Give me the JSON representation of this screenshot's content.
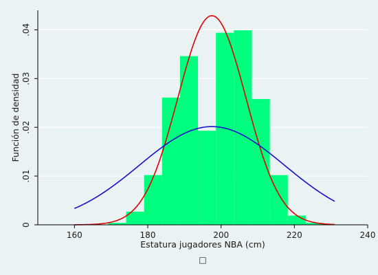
{
  "chart_data": {
    "type": "bar",
    "xlabel": "Estatura jugadores NBA (cm)",
    "ylabel": "Función de densidad",
    "xlim": [
      150,
      240
    ],
    "ylim": [
      0,
      0.044
    ],
    "x_ticks": [
      160,
      180,
      200,
      220,
      240
    ],
    "y_ticks": [
      0,
      0.01,
      0.02,
      0.03,
      0.04
    ],
    "y_tick_labels": [
      "0",
      ".01",
      ".02",
      ".03",
      ".04"
    ],
    "grid": "horizontal",
    "legend_symbol": "□",
    "histogram": {
      "color": "#00ff7f",
      "bins": [
        {
          "start": 169.2,
          "end": 174.1,
          "density": 0.0004
        },
        {
          "start": 174.1,
          "end": 179.0,
          "density": 0.0027
        },
        {
          "start": 179.0,
          "end": 183.9,
          "density": 0.0102
        },
        {
          "start": 183.9,
          "end": 188.8,
          "density": 0.0261
        },
        {
          "start": 188.8,
          "end": 193.7,
          "density": 0.0346
        },
        {
          "start": 193.7,
          "end": 198.6,
          "density": 0.0193
        },
        {
          "start": 198.6,
          "end": 203.5,
          "density": 0.0394
        },
        {
          "start": 203.5,
          "end": 208.4,
          "density": 0.0399
        },
        {
          "start": 208.4,
          "end": 213.3,
          "density": 0.0258
        },
        {
          "start": 213.3,
          "end": 218.2,
          "density": 0.0102
        },
        {
          "start": 218.2,
          "end": 223.1,
          "density": 0.0019
        },
        {
          "start": 223.1,
          "end": 228.0,
          "density": 0.0004
        }
      ]
    },
    "series": [
      {
        "type": "normal-curve",
        "color": "#e00000",
        "mean": 197.5,
        "sd": 9.3,
        "x_range": [
          160,
          231
        ]
      },
      {
        "type": "normal-curve",
        "color": "#1010d0",
        "mean": 197.5,
        "sd": 19.8,
        "x_range": [
          160,
          231
        ]
      }
    ]
  }
}
